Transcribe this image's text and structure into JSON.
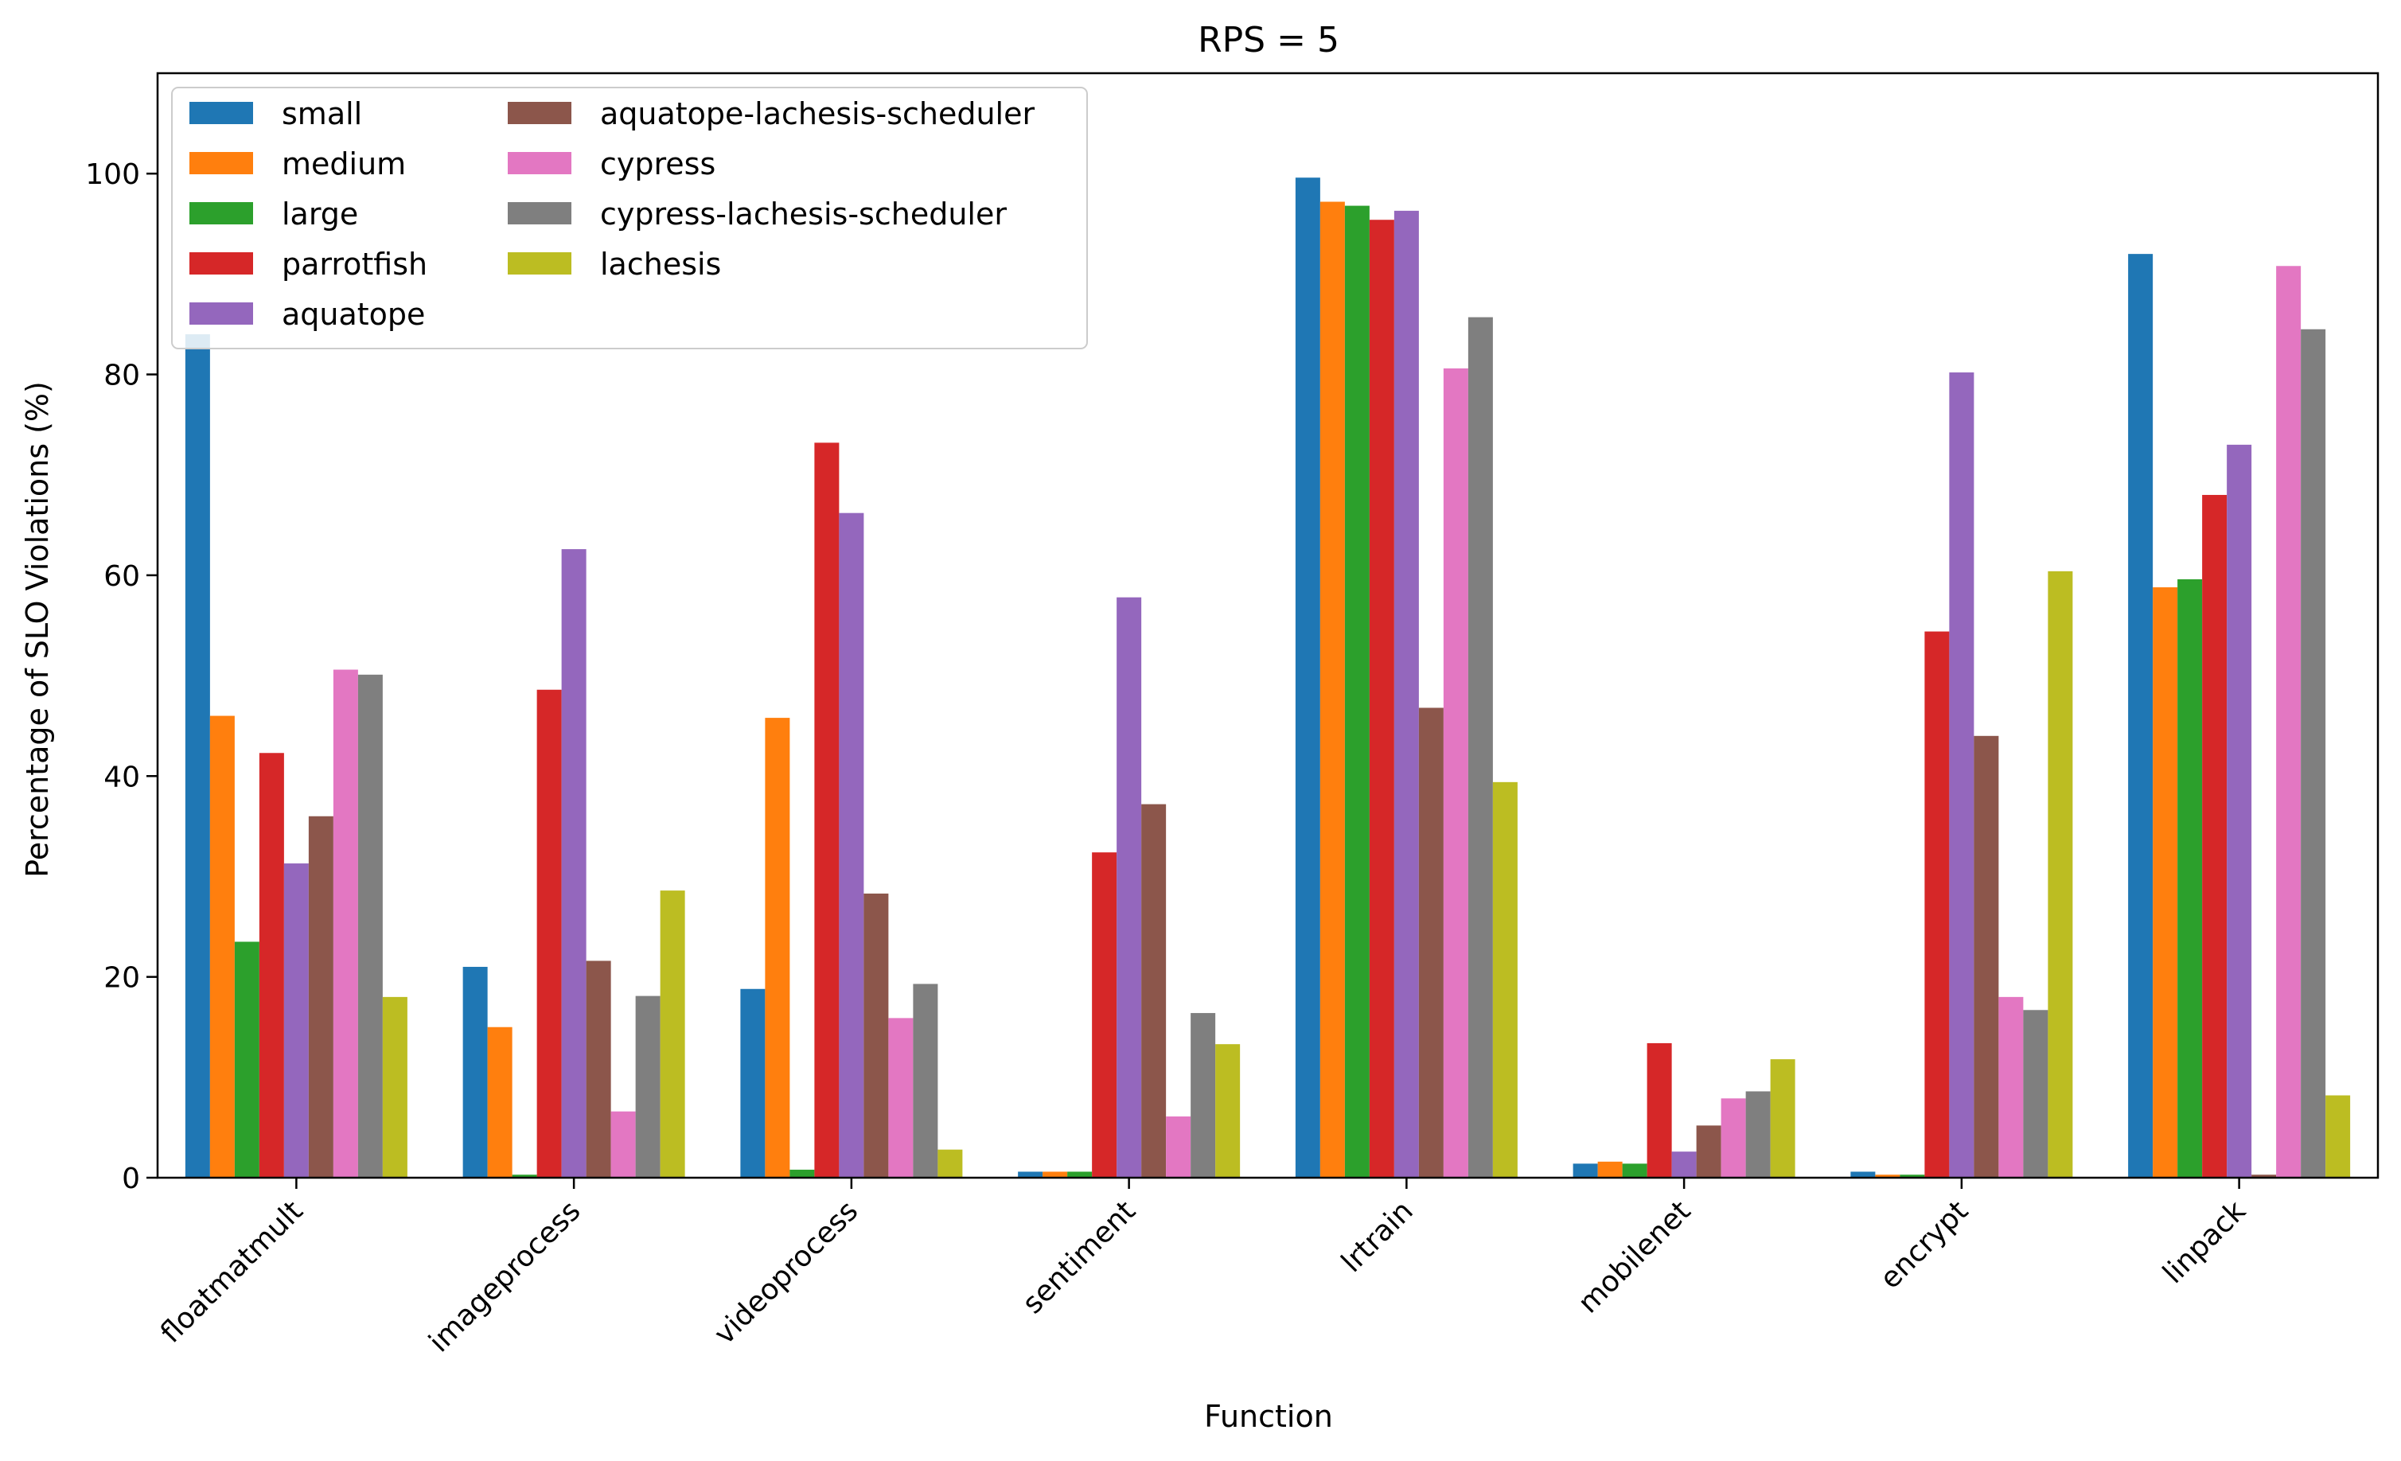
{
  "chart_data": {
    "type": "bar",
    "title": "RPS = 5",
    "xlabel": "Function",
    "ylabel": "Percentage of SLO Violations (%)",
    "ylim": [
      0,
      110
    ],
    "yticks": [
      0,
      20,
      40,
      60,
      80,
      100
    ],
    "grid": false,
    "legend": {
      "placement": "top-left",
      "columns": 2
    },
    "categories": [
      "floatmatmult",
      "imageprocess",
      "videoprocess",
      "sentiment",
      "lrtrain",
      "mobilenet",
      "encrypt",
      "linpack"
    ],
    "series": [
      {
        "name": "small",
        "color": "#1f77b4",
        "values": [
          84.0,
          21.0,
          18.8,
          0.6,
          99.6,
          1.4,
          0.6,
          92.0
        ]
      },
      {
        "name": "medium",
        "color": "#ff7f0e",
        "values": [
          46.0,
          15.0,
          45.8,
          0.6,
          97.2,
          1.6,
          0.3,
          58.8
        ]
      },
      {
        "name": "large",
        "color": "#2ca02c",
        "values": [
          23.5,
          0.3,
          0.8,
          0.6,
          96.8,
          1.4,
          0.3,
          59.6
        ]
      },
      {
        "name": "parrotfish",
        "color": "#d62728",
        "values": [
          42.3,
          48.6,
          73.2,
          32.4,
          95.4,
          13.4,
          54.4,
          68.0
        ]
      },
      {
        "name": "aquatope",
        "color": "#9467bd",
        "values": [
          31.3,
          62.6,
          66.2,
          57.8,
          96.3,
          2.6,
          80.2,
          73.0
        ]
      },
      {
        "name": "aquatope-lachesis-scheduler",
        "color": "#8c564b",
        "values": [
          36.0,
          21.6,
          28.3,
          37.2,
          46.8,
          5.2,
          44.0,
          0.3
        ]
      },
      {
        "name": "cypress",
        "color": "#e377c2",
        "values": [
          50.6,
          6.6,
          15.9,
          6.1,
          80.6,
          7.9,
          18.0,
          90.8
        ]
      },
      {
        "name": "cypress-lachesis-scheduler",
        "color": "#7f7f7f",
        "values": [
          50.1,
          18.1,
          19.3,
          16.4,
          85.7,
          8.6,
          16.7,
          84.5
        ]
      },
      {
        "name": "lachesis",
        "color": "#bcbd22",
        "values": [
          18.0,
          28.6,
          2.8,
          13.3,
          39.4,
          11.8,
          60.4,
          8.2
        ]
      }
    ]
  }
}
